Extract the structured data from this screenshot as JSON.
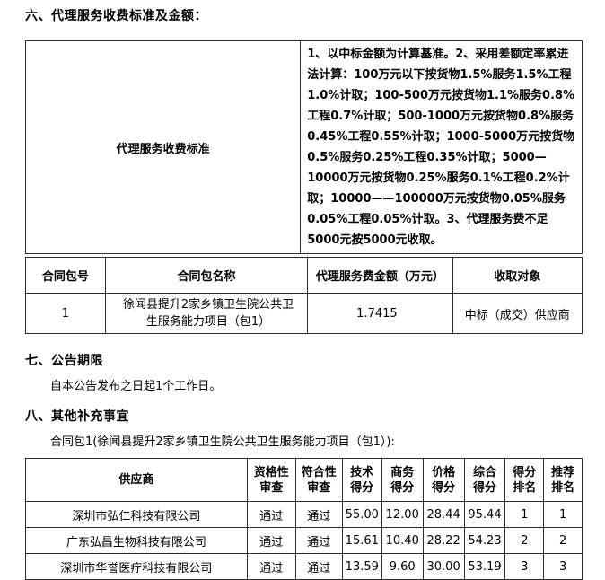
{
  "section6": {
    "title": "六、代理服务收费标准及金额："
  },
  "fee_table": {
    "label": "代理服务收费标准",
    "description": "1、以中标金额为计算基准。2、采用差额定率累进法计算：100万元以下按货物1.5%服务1.5%工程1.0%计取；100-500万元按货物1.1%服务0.8%工程0.7%计取；500-1000万元按货物0.8%服务0.45%工程0.55%计取；1000-5000万元按货物0.5%服务0.25%工程0.35%计取；5000—10000万元按货物0.25%服务0.1%工程0.2%计取；10000——100000万元按货物0.05%服务0.05%工程0.05%计取。3、代理服务费不足5000元按5000元收取。"
  },
  "contract_table": {
    "headers": [
      "合同包号",
      "合同包名称",
      "代理服务费金额（万元）",
      "收取对象"
    ],
    "rows": [
      {
        "package_no": "1",
        "package_name": "徐闻县提升2家乡镇卫生院公共卫生服务能力项目（包1）",
        "fee_amount": "1.7415",
        "charge_target": "中标（成交）供应商"
      }
    ]
  },
  "section7": {
    "title": "七、公告期限",
    "body": "自本公告发布之日起1个工作日。"
  },
  "section8": {
    "title": "八、其他补充事宜",
    "body": "合同包1(徐闻县提升2家乡镇卫生院公共卫生服务能力项目（包1）):"
  },
  "score_table": {
    "headers": [
      "供应商",
      "资格性\n审查",
      "符合性\n审查",
      "技术\n得分",
      "商务\n得分",
      "价格\n得分",
      "综合\n得分",
      "得分\n排名",
      "推荐\n排名"
    ],
    "rows": [
      [
        "深圳市弘仁科技有限公司",
        "通过",
        "通过",
        "55.00",
        "12.00",
        "28.44",
        "95.44",
        "1",
        "1"
      ],
      [
        "广东弘昌生物科技有限公司",
        "通过",
        "通过",
        "15.61",
        "10.40",
        "28.22",
        "54.23",
        "2",
        "2"
      ],
      [
        "深圳市华誉医疗科技有限公司",
        "通过",
        "通过",
        "13.59",
        "9.60",
        "30.00",
        "53.19",
        "3",
        "3"
      ]
    ]
  }
}
